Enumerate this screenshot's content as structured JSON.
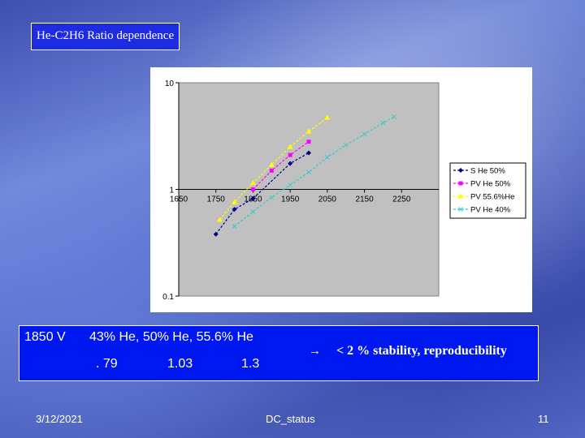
{
  "slide": {
    "title": "He-C2H6 Ratio dependence",
    "voltage": "1850 V",
    "mix_labels": "43% He,   50% He, 55.6% He",
    "val_1": ". 79",
    "val_2": "1.03",
    "val_3": "1.3",
    "arrow": "→",
    "note": "< 2 % stability, reproducibility",
    "date": "3/12/2021",
    "footer_center": "DC_status",
    "page_number": "11"
  },
  "chart_data": {
    "type": "line",
    "y_scale": "log",
    "xlim": [
      1650,
      2350
    ],
    "ylim": [
      0.1,
      10
    ],
    "x_ticks": [
      "1650",
      "1750",
      "1850",
      "1950",
      "2050",
      "2150",
      "2250"
    ],
    "y_ticks": [
      "10",
      "1",
      "0.1"
    ],
    "legend_position": "right",
    "series": [
      {
        "name": "S He 50%",
        "color": "#000080",
        "marker": "diamond",
        "x": [
          1750,
          1800,
          1850,
          1950,
          2000
        ],
        "y": [
          0.38,
          0.65,
          0.82,
          1.75,
          2.2
        ]
      },
      {
        "name": "PV He 50%",
        "color": "#ff00ff",
        "marker": "square",
        "x": [
          1850,
          1900,
          1950,
          2000
        ],
        "y": [
          1.0,
          1.5,
          2.1,
          2.8
        ]
      },
      {
        "name": "PV 55.6%He",
        "color": "#ffff00",
        "marker": "triangle",
        "x": [
          1760,
          1800,
          1850,
          1900,
          1950,
          2000,
          2050
        ],
        "y": [
          0.52,
          0.76,
          1.15,
          1.7,
          2.5,
          3.5,
          4.7
        ]
      },
      {
        "name": "PV He 40%",
        "color": "#33cccc",
        "marker": "x",
        "x": [
          1800,
          1850,
          1900,
          1950,
          2000,
          2050,
          2100,
          2150,
          2200,
          2230
        ],
        "y": [
          0.45,
          0.62,
          0.84,
          1.1,
          1.45,
          2.0,
          2.6,
          3.3,
          4.2,
          4.8
        ]
      }
    ]
  }
}
